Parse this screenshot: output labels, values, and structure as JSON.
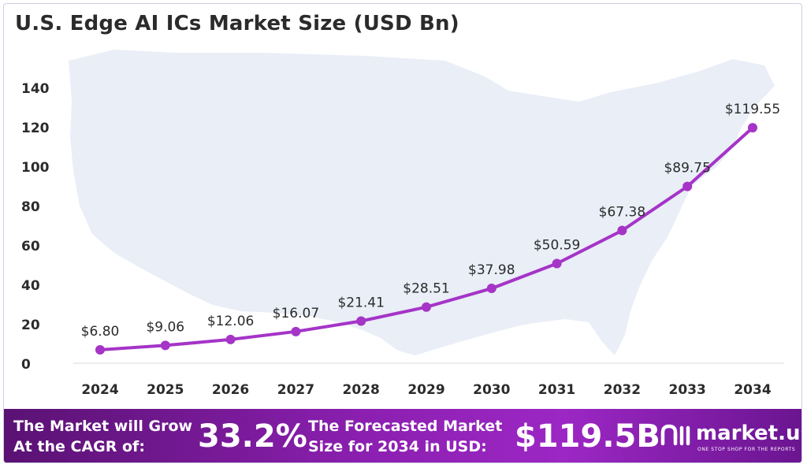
{
  "header": {
    "title": "U.S. Edge AI ICs Market Size (USD Bn)"
  },
  "chart_data": {
    "type": "line",
    "title": "U.S. Edge AI ICs Market Size (USD Bn)",
    "xlabel": "",
    "ylabel": "",
    "categories": [
      "2024",
      "2025",
      "2026",
      "2027",
      "2028",
      "2029",
      "2030",
      "2031",
      "2032",
      "2033",
      "2034"
    ],
    "series": [
      {
        "values": [
          6.8,
          9.06,
          12.06,
          16.07,
          21.41,
          28.51,
          37.98,
          50.59,
          67.38,
          89.75,
          119.55
        ],
        "labels": [
          "$6.80",
          "$9.06",
          "$12.06",
          "$16.07",
          "$21.41",
          "$28.51",
          "$37.98",
          "$50.59",
          "$67.38",
          "$89.75",
          "$119.55"
        ]
      }
    ],
    "ylim": [
      0,
      140
    ],
    "yticks": [
      "0",
      "20",
      "40",
      "60",
      "80",
      "100",
      "120",
      "140"
    ],
    "grid": false,
    "legend": "none",
    "line_color": "#a534c7",
    "background_shape": "us-map-silhouette"
  },
  "banner": {
    "cagr_line1": "The Market will Grow",
    "cagr_line2": "At the CAGR of:",
    "cagr_value": "33.2%",
    "forecast_line1": "The Forecasted Market",
    "forecast_line2": "Size for 2034 in USD:",
    "forecast_value": "$119.5B",
    "logo_name": "market.us",
    "logo_tagline": "ONE STOP SHOP FOR THE REPORTS"
  },
  "colors": {
    "line": "#a534c7",
    "banner_start": "#5a1273",
    "banner_end": "#9c27c4",
    "map": "#e9eef7"
  }
}
